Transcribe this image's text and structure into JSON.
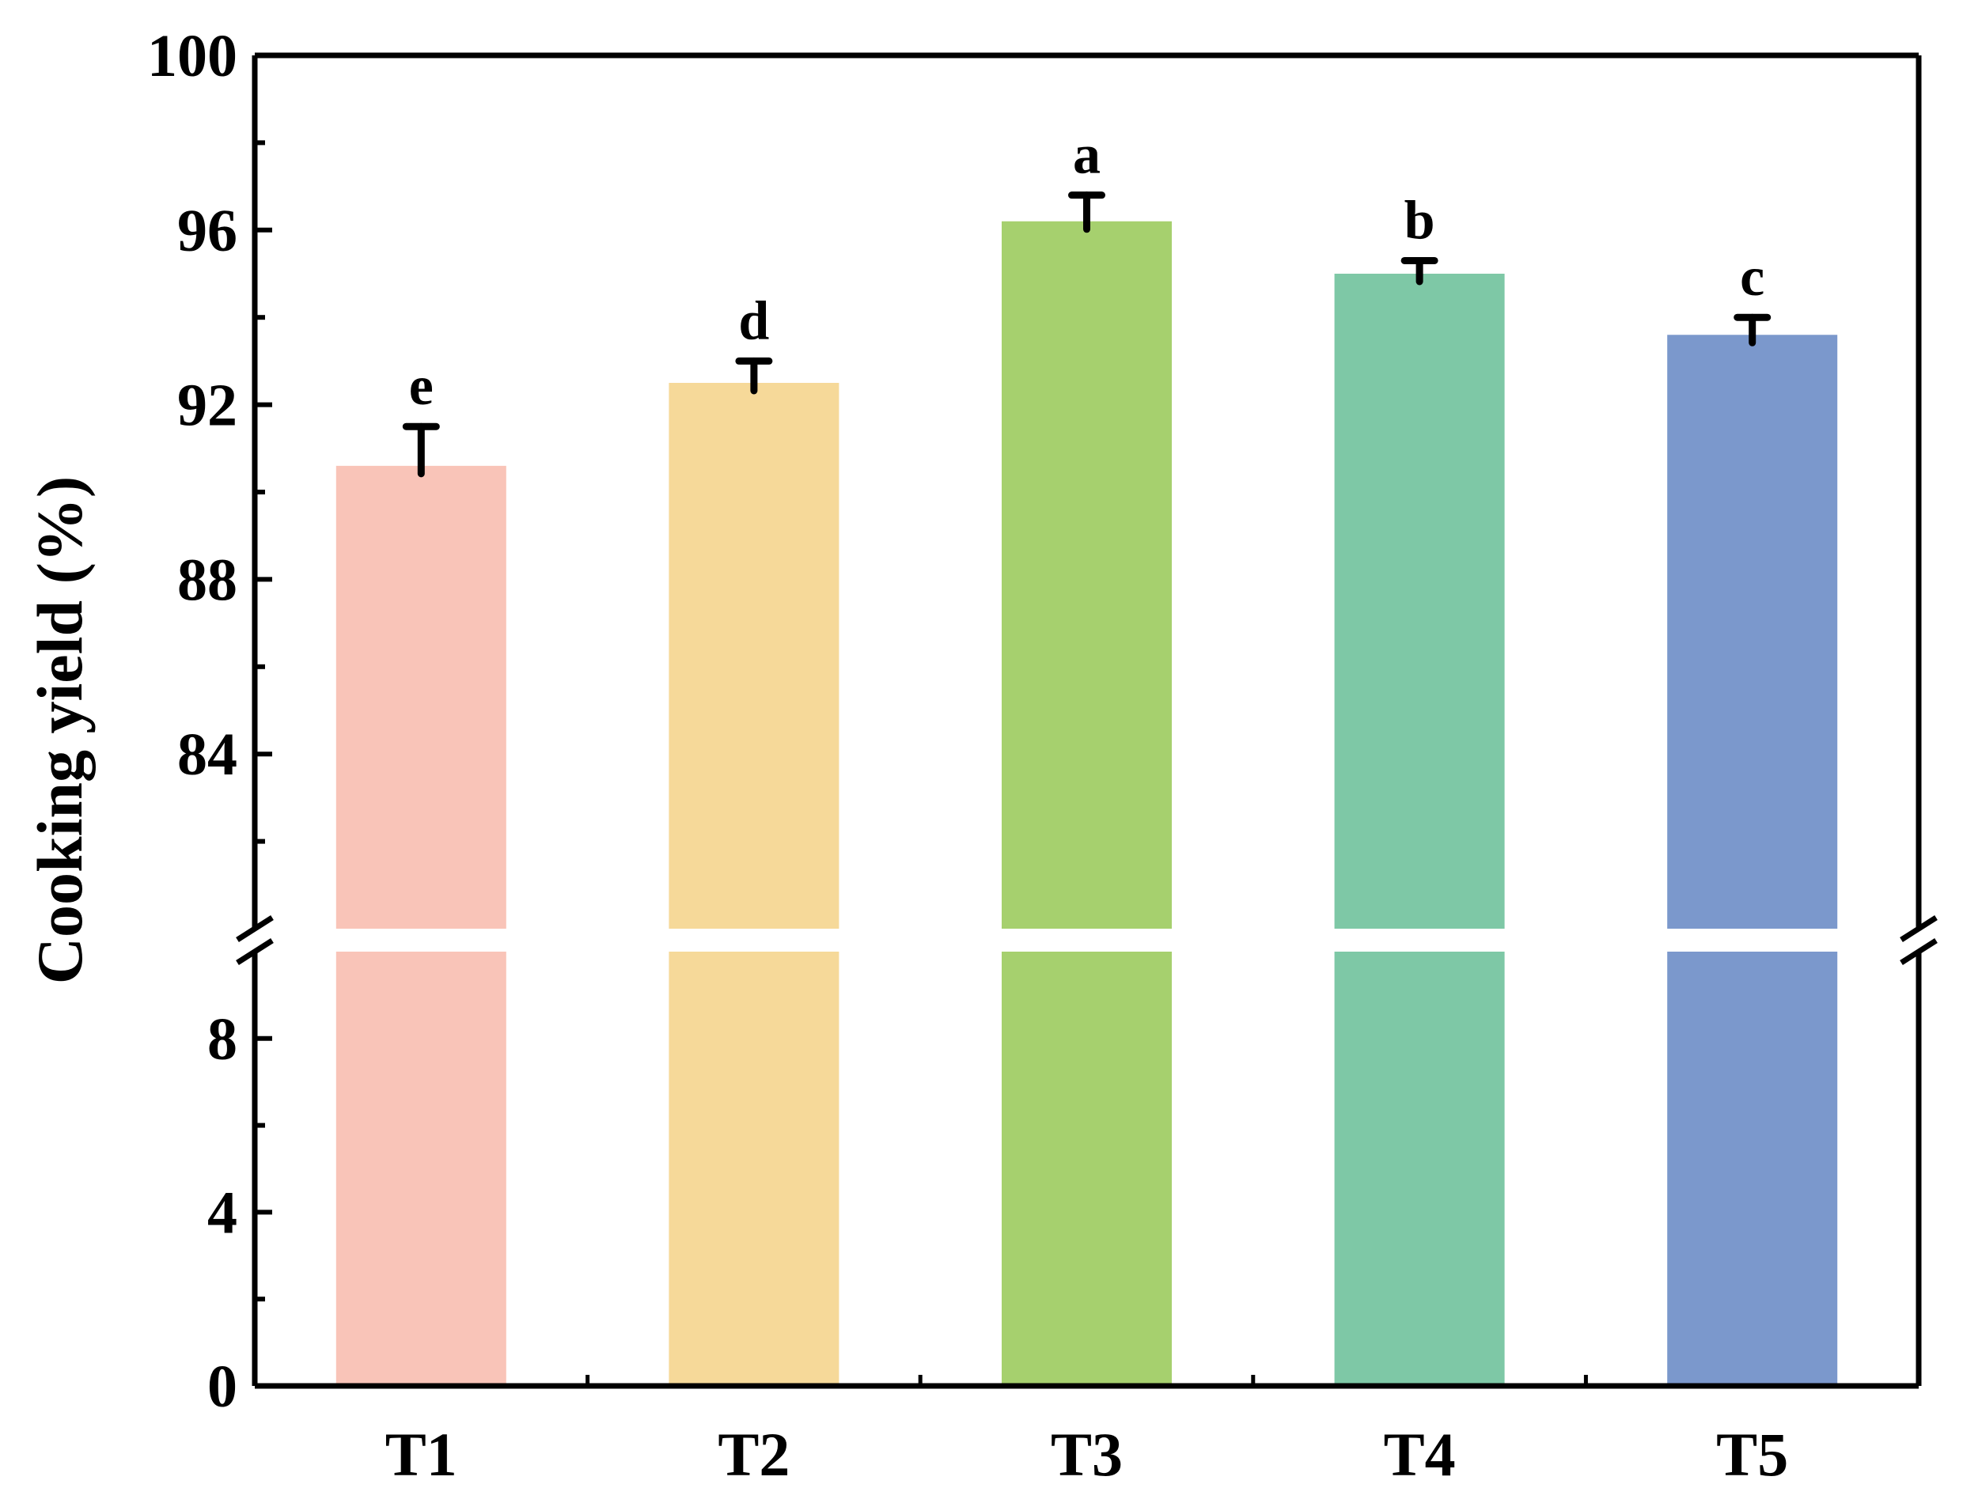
{
  "chart_data": {
    "type": "bar",
    "categories": [
      "T1",
      "T2",
      "T3",
      "T4",
      "T5"
    ],
    "values": [
      90.6,
      92.5,
      96.2,
      95.0,
      93.6
    ],
    "errors": [
      0.9,
      0.5,
      0.6,
      0.3,
      0.4
    ],
    "significance_letters": [
      "e",
      "d",
      "a",
      "b",
      "c"
    ],
    "colors": [
      "#f9c4b8",
      "#f6d999",
      "#a6d06e",
      "#7ec8a6",
      "#7b98cc"
    ],
    "xlabel": "",
    "ylabel": "Cooking yield (%)",
    "axis_break": {
      "lower_range": [
        0,
        10
      ],
      "upper_range": [
        80,
        100
      ]
    },
    "lower_ticks": [
      0,
      4,
      8
    ],
    "upper_ticks": [
      84,
      88,
      92,
      96,
      100
    ],
    "grid": false,
    "legend": "none"
  }
}
